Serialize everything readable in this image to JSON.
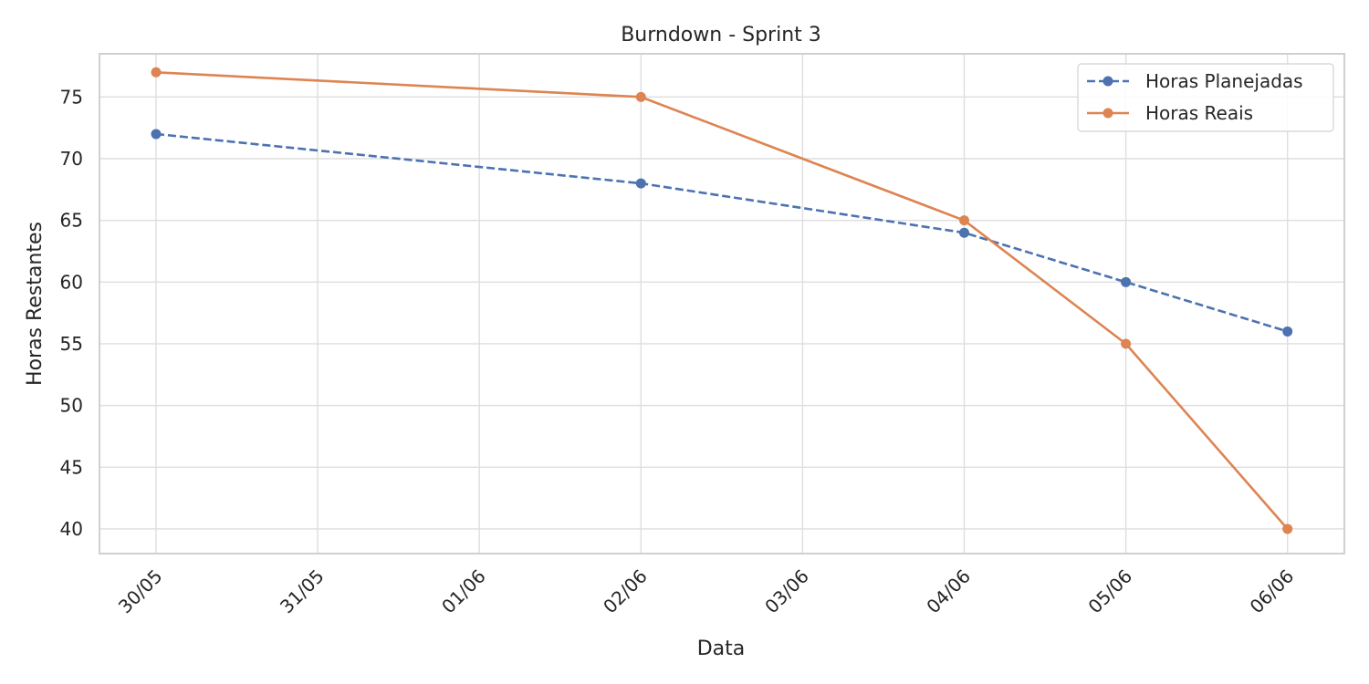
{
  "chart_data": {
    "type": "line",
    "title": "Burndown - Sprint 3",
    "xlabel": "Data",
    "ylabel": "Horas Restantes",
    "x_ticks": [
      "30/05",
      "31/05",
      "01/06",
      "02/06",
      "03/06",
      "04/06",
      "05/06",
      "06/06"
    ],
    "y_ticks": [
      40,
      45,
      50,
      55,
      60,
      65,
      70,
      75
    ],
    "ylim": [
      38,
      78.5
    ],
    "grid": true,
    "legend_position": "top-right",
    "series": [
      {
        "name": "Horas Planejadas",
        "color": "#4c72b0",
        "line_style": "dashed",
        "marker": "circle",
        "points": [
          {
            "x": "30/05",
            "y": 72
          },
          {
            "x": "02/06",
            "y": 68
          },
          {
            "x": "04/06",
            "y": 64
          },
          {
            "x": "05/06",
            "y": 60
          },
          {
            "x": "06/06",
            "y": 56
          }
        ]
      },
      {
        "name": "Horas Reais",
        "color": "#dd8452",
        "line_style": "solid",
        "marker": "circle",
        "points": [
          {
            "x": "30/05",
            "y": 77
          },
          {
            "x": "02/06",
            "y": 75
          },
          {
            "x": "04/06",
            "y": 65
          },
          {
            "x": "05/06",
            "y": 55
          },
          {
            "x": "06/06",
            "y": 40
          }
        ]
      }
    ]
  }
}
